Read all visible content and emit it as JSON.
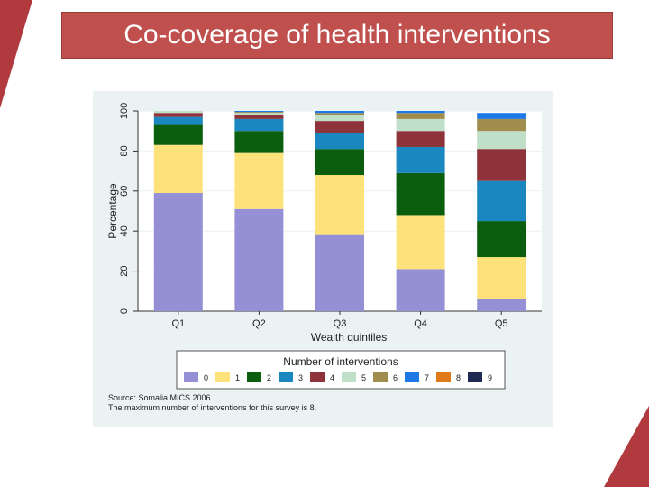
{
  "title": "Co-coverage of health interventions",
  "chart_data": {
    "type": "bar",
    "stacked": true,
    "categories": [
      "Q1",
      "Q2",
      "Q3",
      "Q4",
      "Q5"
    ],
    "xlabel": "Wealth quintiles",
    "ylabel": "Percentage",
    "ylim": [
      0,
      100
    ],
    "yticks": [
      "0",
      "20",
      "40",
      "60",
      "80",
      "100"
    ],
    "grid": true,
    "legend_title": "Number of interventions",
    "legend_position": "bottom",
    "series": [
      {
        "name": "0",
        "color": "#9590d6",
        "values": [
          59,
          51,
          38,
          21,
          6
        ]
      },
      {
        "name": "1",
        "color": "#fde27c",
        "values": [
          24,
          28,
          30,
          27,
          21
        ]
      },
      {
        "name": "2",
        "color": "#0a5e0e",
        "values": [
          10,
          11,
          13,
          21,
          18
        ]
      },
      {
        "name": "3",
        "color": "#1b87c0",
        "values": [
          4,
          6,
          8,
          13,
          20
        ]
      },
      {
        "name": "4",
        "color": "#8e3339",
        "values": [
          2,
          2,
          6,
          8,
          16
        ]
      },
      {
        "name": "5",
        "color": "#bfdfc9",
        "values": [
          1,
          1,
          3,
          6,
          9
        ]
      },
      {
        "name": "6",
        "color": "#a08c4d",
        "values": [
          0,
          0.5,
          1,
          3,
          6
        ]
      },
      {
        "name": "7",
        "color": "#1e78e8",
        "values": [
          0,
          0.5,
          1,
          1,
          3
        ]
      },
      {
        "name": "8",
        "color": "#e07a18",
        "values": [
          0,
          0,
          0,
          0,
          0
        ]
      },
      {
        "name": "9",
        "color": "#1d2b52",
        "values": [
          0,
          0,
          0,
          0,
          0
        ]
      }
    ],
    "notes": [
      "Source: Somalia MICS 2006",
      "The maximum number of interventions for this survey is 8."
    ]
  }
}
